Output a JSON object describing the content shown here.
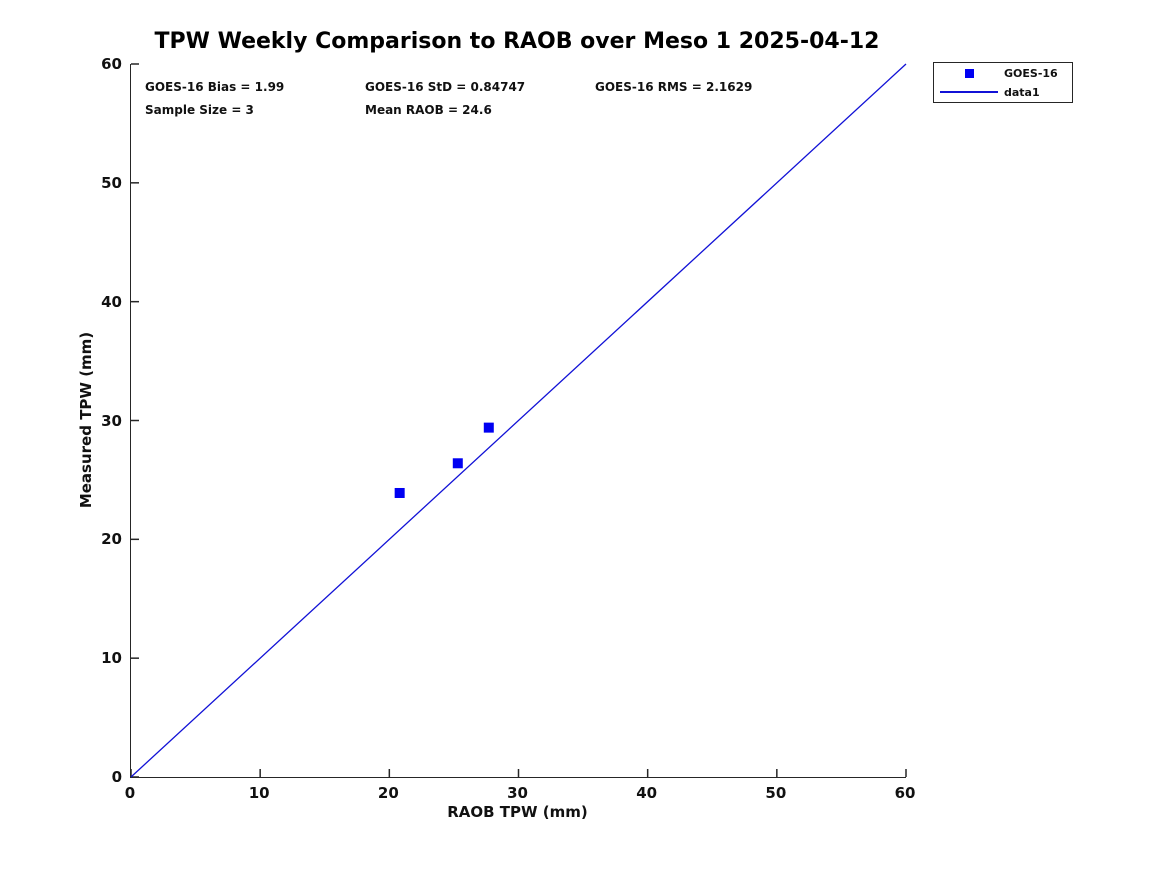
{
  "figure": {
    "title": "TPW Weekly Comparison to RAOB over Meso 1 2025-04-12",
    "background_color": "#ffffff",
    "axis_color": "#262626"
  },
  "stats": {
    "bias": "GOES-16 Bias = 1.99",
    "std": "GOES-16 StD = 0.84747",
    "rms": "GOES-16 RMS = 2.1629",
    "sample_size": "Sample Size = 3",
    "mean_raob": "Mean RAOB = 24.6"
  },
  "legend": {
    "items": [
      {
        "label": "GOES-16",
        "glyph": "square-marker",
        "color": "#0000f2"
      },
      {
        "label": "data1",
        "glyph": "line",
        "color": "#1111d6"
      }
    ]
  },
  "chart_data": {
    "type": "scatter",
    "title": "TPW Weekly Comparison to RAOB over Meso 1 2025-04-12",
    "xlabel": "RAOB TPW (mm)",
    "ylabel": "Measured TPW (mm)",
    "xlim": [
      0,
      60
    ],
    "ylim": [
      0,
      60
    ],
    "xticks": [
      0,
      10,
      20,
      30,
      40,
      50,
      60
    ],
    "yticks": [
      0,
      10,
      20,
      30,
      40,
      50,
      60
    ],
    "grid": false,
    "legend_position": "top-right-outside",
    "series": [
      {
        "name": "GOES-16",
        "type": "scatter",
        "marker": "filled-square",
        "color": "#0000f2",
        "points": [
          [
            20.8,
            23.9
          ],
          [
            25.3,
            26.4
          ],
          [
            27.7,
            29.4
          ]
        ]
      },
      {
        "name": "data1",
        "type": "line",
        "color": "#1111d6",
        "points": [
          [
            0,
            0
          ],
          [
            60,
            60
          ]
        ]
      }
    ]
  }
}
